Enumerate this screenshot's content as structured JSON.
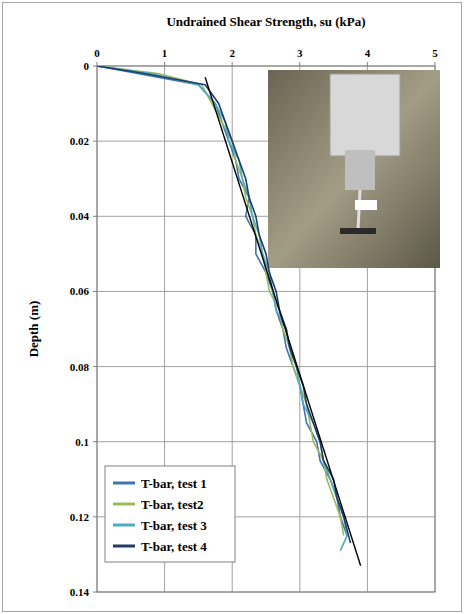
{
  "chart_data": {
    "type": "line",
    "x_label": "Undrained Shear Strength, su (kPa)",
    "y_label": "Depth (m)",
    "xlim": [
      0,
      5
    ],
    "xticks": [
      0,
      1,
      2,
      3,
      4,
      5
    ],
    "ylim": [
      0,
      0.14
    ],
    "yticks": [
      0,
      0.02,
      0.04,
      0.06,
      0.08,
      0.1,
      0.12,
      0.14
    ],
    "grid": true,
    "legend": "bottom-left",
    "series": [
      {
        "name": "T-bar, test 1",
        "color": "#3f74b3",
        "marker": "none",
        "line_style": "solid",
        "x": [
          0,
          0.6,
          1.5,
          1.75,
          1.85,
          1.95,
          2.05,
          2.1,
          2.25,
          2.2,
          2.35,
          2.35,
          2.5,
          2.6,
          2.65,
          2.75,
          2.8,
          2.9,
          3.0,
          3.05,
          3.1,
          3.25,
          3.3,
          3.45,
          3.55,
          3.6,
          3.7
        ],
        "values": [
          0,
          0.002,
          0.005,
          0.01,
          0.015,
          0.02,
          0.025,
          0.03,
          0.035,
          0.04,
          0.045,
          0.05,
          0.055,
          0.06,
          0.065,
          0.07,
          0.075,
          0.08,
          0.085,
          0.09,
          0.095,
          0.1,
          0.105,
          0.11,
          0.115,
          0.12,
          0.125
        ]
      },
      {
        "name": "T-bar, test2",
        "color": "#9bbb59",
        "marker": "none",
        "line_style": "solid",
        "x": [
          0,
          0.9,
          1.55,
          1.7,
          1.85,
          2.0,
          2.05,
          2.15,
          2.2,
          2.3,
          2.35,
          2.45,
          2.5,
          2.55,
          2.7,
          2.75,
          2.85,
          2.9,
          3.0,
          3.1,
          3.15,
          3.2,
          3.35,
          3.4,
          3.5,
          3.6,
          3.65
        ],
        "values": [
          0,
          0.002,
          0.005,
          0.01,
          0.015,
          0.02,
          0.025,
          0.03,
          0.035,
          0.04,
          0.045,
          0.05,
          0.055,
          0.06,
          0.065,
          0.07,
          0.075,
          0.08,
          0.085,
          0.09,
          0.095,
          0.1,
          0.105,
          0.11,
          0.115,
          0.12,
          0.125
        ]
      },
      {
        "name": "T-bar, test 3",
        "color": "#4bacc6",
        "marker": "none",
        "line_style": "solid",
        "x": [
          0,
          0.8,
          1.5,
          1.75,
          1.9,
          1.95,
          2.1,
          2.15,
          2.25,
          2.3,
          2.4,
          2.45,
          2.55,
          2.6,
          2.65,
          2.8,
          2.85,
          2.95,
          3.0,
          3.05,
          3.2,
          3.3,
          3.35,
          3.45,
          3.55,
          3.65,
          3.7,
          3.6
        ],
        "values": [
          0,
          0.002,
          0.005,
          0.01,
          0.015,
          0.02,
          0.025,
          0.03,
          0.035,
          0.04,
          0.045,
          0.05,
          0.055,
          0.06,
          0.065,
          0.07,
          0.075,
          0.08,
          0.085,
          0.09,
          0.095,
          0.1,
          0.105,
          0.11,
          0.115,
          0.12,
          0.125,
          0.129
        ]
      },
      {
        "name": "T-bar, test 4",
        "color": "#1f3d66",
        "marker": "none",
        "line_style": "solid",
        "x": [
          0,
          0.7,
          1.6,
          1.8,
          1.9,
          2.0,
          2.1,
          2.2,
          2.25,
          2.35,
          2.4,
          2.5,
          2.55,
          2.65,
          2.7,
          2.8,
          2.85,
          2.95,
          3.05,
          3.1,
          3.2,
          3.3,
          3.35,
          3.5,
          3.55,
          3.65,
          3.75
        ],
        "values": [
          0,
          0.002,
          0.005,
          0.01,
          0.015,
          0.02,
          0.025,
          0.03,
          0.035,
          0.04,
          0.045,
          0.05,
          0.055,
          0.06,
          0.065,
          0.07,
          0.075,
          0.08,
          0.085,
          0.09,
          0.095,
          0.1,
          0.105,
          0.11,
          0.115,
          0.12,
          0.127
        ]
      },
      {
        "color": "#000000",
        "marker": "none",
        "line_style": "solid",
        "x": [
          1.6,
          3.9
        ],
        "values": [
          0.003,
          0.133
        ]
      }
    ]
  }
}
